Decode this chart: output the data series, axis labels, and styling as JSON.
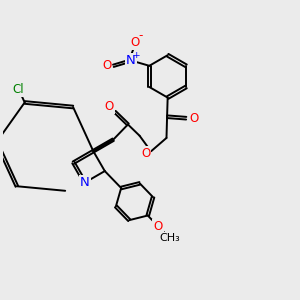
{
  "background_color": "#ebebeb",
  "bond_color": "black",
  "atom_colors": {
    "N": "blue",
    "O": "red",
    "Cl": "green",
    "C": "black"
  },
  "bond_width": 1.4,
  "font_size": 8.5,
  "fig_size": [
    3.0,
    3.0
  ],
  "dpi": 100
}
